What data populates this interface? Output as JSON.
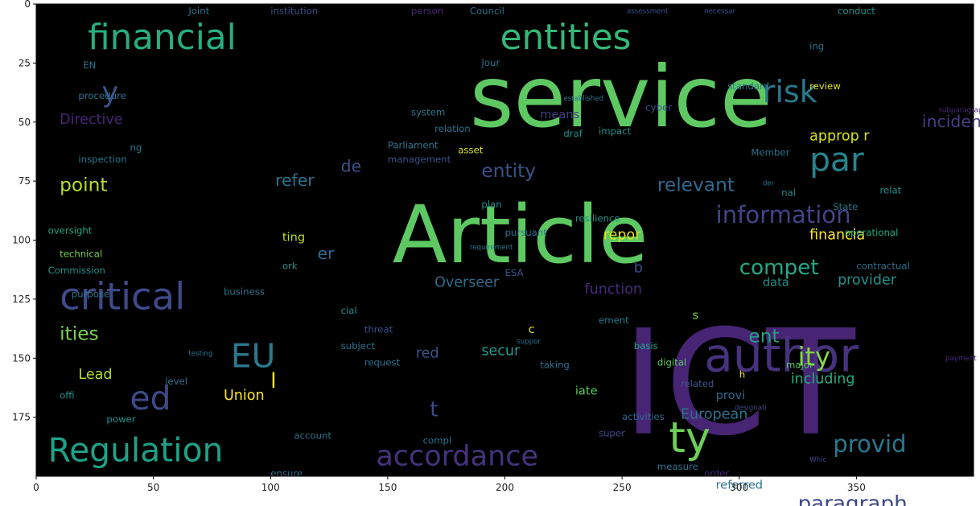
{
  "chart_data": {
    "type": "wordcloud_image",
    "title": "",
    "xlabel": "",
    "ylabel": "",
    "xlim": [
      0,
      400
    ],
    "ylim": [
      200,
      0
    ],
    "x_ticks": [
      0,
      50,
      100,
      150,
      200,
      250,
      300,
      350
    ],
    "y_ticks": [
      0,
      25,
      50,
      75,
      100,
      125,
      150,
      175
    ],
    "background": "#000000",
    "palette": "viridis",
    "words": [
      {
        "text": "service",
        "x": 185,
        "y": 42,
        "size": 36,
        "color": "#5ec962"
      },
      {
        "text": "Article",
        "x": 152,
        "y": 100,
        "size": 34,
        "color": "#5ec962"
      },
      {
        "text": "ICT",
        "x": 250,
        "y": 165,
        "size": 62,
        "color": "#482475"
      },
      {
        "text": "financial",
        "x": 22,
        "y": 15,
        "size": 15,
        "color": "#27ad81"
      },
      {
        "text": "entities",
        "x": 198,
        "y": 15,
        "size": 15,
        "color": "#35b779"
      },
      {
        "text": "risk",
        "x": 310,
        "y": 38,
        "size": 13,
        "color": "#2a788e"
      },
      {
        "text": "par",
        "x": 330,
        "y": 67,
        "size": 14,
        "color": "#25858e"
      },
      {
        "text": "author",
        "x": 285,
        "y": 150,
        "size": 20,
        "color": "#46327e"
      },
      {
        "text": "critical",
        "x": 10,
        "y": 125,
        "size": 16,
        "color": "#3e4a89"
      },
      {
        "text": "Regulation",
        "x": 5,
        "y": 190,
        "size": 14,
        "color": "#1fa187"
      },
      {
        "text": "accordance",
        "x": 145,
        "y": 192,
        "size": 12,
        "color": "#46327e"
      },
      {
        "text": "ed",
        "x": 40,
        "y": 168,
        "size": 14,
        "color": "#3e4a89"
      },
      {
        "text": "EU",
        "x": 83,
        "y": 150,
        "size": 14,
        "color": "#2a788e"
      },
      {
        "text": "ty",
        "x": 270,
        "y": 185,
        "size": 18,
        "color": "#6ece58"
      },
      {
        "text": "ity",
        "x": 325,
        "y": 150,
        "size": 11,
        "color": "#86d549"
      },
      {
        "text": "information",
        "x": 290,
        "y": 90,
        "size": 10,
        "color": "#414487"
      },
      {
        "text": "compet",
        "x": 300,
        "y": 112,
        "size": 9,
        "color": "#22a884"
      },
      {
        "text": "provid",
        "x": 340,
        "y": 187,
        "size": 10,
        "color": "#2a788e"
      },
      {
        "text": "paragraph",
        "x": 325,
        "y": 212,
        "size": 9,
        "color": "#3e4a89"
      },
      {
        "text": "point",
        "x": 10,
        "y": 77,
        "size": 8,
        "color": "#b5de2b"
      },
      {
        "text": "ities",
        "x": 10,
        "y": 140,
        "size": 8,
        "color": "#7ad151"
      },
      {
        "text": "Union",
        "x": 80,
        "y": 166,
        "size": 6,
        "color": "#fde725"
      },
      {
        "text": "Lead",
        "x": 18,
        "y": 157,
        "size": 6,
        "color": "#b5de2b"
      },
      {
        "text": "entity",
        "x": 190,
        "y": 71,
        "size": 8,
        "color": "#3b528b"
      },
      {
        "text": "relevant",
        "x": 265,
        "y": 77,
        "size": 8,
        "color": "#31688e"
      },
      {
        "text": "refer",
        "x": 102,
        "y": 75,
        "size": 7,
        "color": "#2c728e"
      },
      {
        "text": "de",
        "x": 130,
        "y": 69,
        "size": 7,
        "color": "#3b528b"
      },
      {
        "text": "er",
        "x": 120,
        "y": 106,
        "size": 7,
        "color": "#31688e"
      },
      {
        "text": "Overseer",
        "x": 170,
        "y": 118,
        "size": 6,
        "color": "#306a8e"
      },
      {
        "text": "function",
        "x": 234,
        "y": 121,
        "size": 6,
        "color": "#472a7a"
      },
      {
        "text": "provider",
        "x": 342,
        "y": 117,
        "size": 6,
        "color": "#21918c"
      },
      {
        "text": "European",
        "x": 275,
        "y": 174,
        "size": 6,
        "color": "#2c728e"
      },
      {
        "text": "secur",
        "x": 190,
        "y": 147,
        "size": 6,
        "color": "#1e9b8a"
      },
      {
        "text": "ent",
        "x": 304,
        "y": 141,
        "size": 8,
        "color": "#20a386"
      },
      {
        "text": "including",
        "x": 322,
        "y": 159,
        "size": 6,
        "color": "#26ad81"
      },
      {
        "text": "financia",
        "x": 330,
        "y": 98,
        "size": 6,
        "color": "#fde725"
      },
      {
        "text": "repor",
        "x": 242,
        "y": 98,
        "size": 6,
        "color": "#dde318"
      },
      {
        "text": "data",
        "x": 310,
        "y": 118,
        "size": 5,
        "color": "#1f968b"
      },
      {
        "text": "approp r",
        "x": 330,
        "y": 56,
        "size": 6,
        "color": "#d8e219"
      },
      {
        "text": "incident",
        "x": 378,
        "y": 50,
        "size": 7,
        "color": "#433e85"
      },
      {
        "text": "Directive",
        "x": 10,
        "y": 49,
        "size": 6,
        "color": "#482677"
      },
      {
        "text": "referred",
        "x": 290,
        "y": 204,
        "size": 5,
        "color": "#2c728e"
      },
      {
        "text": "provi",
        "x": 290,
        "y": 166,
        "size": 5,
        "color": "#31688e"
      },
      {
        "text": "iate",
        "x": 230,
        "y": 164,
        "size": 5,
        "color": "#5dc863"
      },
      {
        "text": "means",
        "x": 215,
        "y": 47,
        "size": 5,
        "color": "#433e85"
      },
      {
        "text": "ting",
        "x": 105,
        "y": 99,
        "size": 5,
        "color": "#b8de29"
      },
      {
        "text": "red",
        "x": 162,
        "y": 148,
        "size": 6,
        "color": "#3b528b"
      },
      {
        "text": "b",
        "x": 255,
        "y": 112,
        "size": 6,
        "color": "#3e4a89"
      },
      {
        "text": "l",
        "x": 100,
        "y": 160,
        "size": 9,
        "color": "#fde725"
      },
      {
        "text": "t",
        "x": 168,
        "y": 172,
        "size": 9,
        "color": "#3e4a89"
      },
      {
        "text": "y",
        "x": 28,
        "y": 38,
        "size": 12,
        "color": "#3b528b"
      },
      {
        "text": "c",
        "x": 210,
        "y": 138,
        "size": 5,
        "color": "#e5e419"
      },
      {
        "text": "s",
        "x": 280,
        "y": 132,
        "size": 5,
        "color": "#7ad151"
      },
      {
        "text": "h",
        "x": 300,
        "y": 157,
        "size": 4,
        "color": "#fde725"
      },
      {
        "text": "institution",
        "x": 100,
        "y": 3,
        "size": 4,
        "color": "#3b528b"
      },
      {
        "text": "Council",
        "x": 185,
        "y": 3,
        "size": 4,
        "color": "#2c728e"
      },
      {
        "text": "Joint",
        "x": 65,
        "y": 3,
        "size": 4,
        "color": "#2c728e"
      },
      {
        "text": "person",
        "x": 160,
        "y": 3,
        "size": 4,
        "color": "#482878"
      },
      {
        "text": "assessment",
        "x": 252,
        "y": 3,
        "size": 3,
        "color": "#3b528b"
      },
      {
        "text": "necessar",
        "x": 285,
        "y": 3,
        "size": 3,
        "color": "#3b528b"
      },
      {
        "text": "conduct",
        "x": 342,
        "y": 3,
        "size": 4,
        "color": "#21918c"
      },
      {
        "text": "procedure",
        "x": 18,
        "y": 39,
        "size": 4,
        "color": "#2c728e"
      },
      {
        "text": "system",
        "x": 160,
        "y": 46,
        "size": 4,
        "color": "#2a788e"
      },
      {
        "text": "relation",
        "x": 170,
        "y": 53,
        "size": 4,
        "color": "#2c728e"
      },
      {
        "text": "Parliament",
        "x": 150,
        "y": 60,
        "size": 4,
        "color": "#2a788e"
      },
      {
        "text": "management",
        "x": 150,
        "y": 66,
        "size": 4,
        "color": "#3b528b"
      },
      {
        "text": "inspection",
        "x": 18,
        "y": 66,
        "size": 4,
        "color": "#2a788e"
      },
      {
        "text": "oversight",
        "x": 5,
        "y": 96,
        "size": 4,
        "color": "#22a884"
      },
      {
        "text": "technical",
        "x": 10,
        "y": 106,
        "size": 4,
        "color": "#7ad151"
      },
      {
        "text": "Commission",
        "x": 5,
        "y": 113,
        "size": 4,
        "color": "#21918c"
      },
      {
        "text": "purpose",
        "x": 15,
        "y": 123,
        "size": 4,
        "color": "#2c728e"
      },
      {
        "text": "pursuant",
        "x": 200,
        "y": 97,
        "size": 4,
        "color": "#2c728e"
      },
      {
        "text": "resilience",
        "x": 230,
        "y": 91,
        "size": 4,
        "color": "#21918c"
      },
      {
        "text": "operational",
        "x": 345,
        "y": 97,
        "size": 4,
        "color": "#26ad81"
      },
      {
        "text": "contractual",
        "x": 350,
        "y": 111,
        "size": 4,
        "color": "#2c728e"
      },
      {
        "text": "standard",
        "x": 295,
        "y": 35,
        "size": 4,
        "color": "#2a788e"
      },
      {
        "text": "review",
        "x": 330,
        "y": 35,
        "size": 4,
        "color": "#dde318"
      },
      {
        "text": "cyber",
        "x": 260,
        "y": 44,
        "size": 4,
        "color": "#3b528b"
      },
      {
        "text": "impact",
        "x": 240,
        "y": 54,
        "size": 4,
        "color": "#21918c"
      },
      {
        "text": "Member",
        "x": 305,
        "y": 63,
        "size": 4,
        "color": "#2c728e"
      },
      {
        "text": "State",
        "x": 340,
        "y": 86,
        "size": 4,
        "color": "#2c728e"
      },
      {
        "text": "relat",
        "x": 360,
        "y": 79,
        "size": 4,
        "color": "#21918c"
      },
      {
        "text": "asset",
        "x": 180,
        "y": 62,
        "size": 4,
        "color": "#dde318"
      },
      {
        "text": "draf",
        "x": 225,
        "y": 55,
        "size": 4,
        "color": "#21918c"
      },
      {
        "text": "business",
        "x": 80,
        "y": 122,
        "size": 4,
        "color": "#2c728e"
      },
      {
        "text": "testing",
        "x": 65,
        "y": 148,
        "size": 3,
        "color": "#2c728e"
      },
      {
        "text": "threat",
        "x": 140,
        "y": 138,
        "size": 4,
        "color": "#3b528b"
      },
      {
        "text": "subject",
        "x": 130,
        "y": 145,
        "size": 4,
        "color": "#2c728e"
      },
      {
        "text": "request",
        "x": 140,
        "y": 152,
        "size": 4,
        "color": "#2c728e"
      },
      {
        "text": "digital",
        "x": 265,
        "y": 152,
        "size": 4,
        "color": "#5ec962"
      },
      {
        "text": "basis",
        "x": 255,
        "y": 145,
        "size": 4,
        "color": "#22a884"
      },
      {
        "text": "taking",
        "x": 215,
        "y": 153,
        "size": 4,
        "color": "#2c728e"
      },
      {
        "text": "major",
        "x": 320,
        "y": 153,
        "size": 4,
        "color": "#5ec962"
      },
      {
        "text": "related",
        "x": 275,
        "y": 161,
        "size": 4,
        "color": "#3b528b"
      },
      {
        "text": "level",
        "x": 55,
        "y": 160,
        "size": 4,
        "color": "#2c728e"
      },
      {
        "text": "offi",
        "x": 10,
        "y": 166,
        "size": 4,
        "color": "#21918c"
      },
      {
        "text": "power",
        "x": 30,
        "y": 176,
        "size": 4,
        "color": "#21918c"
      },
      {
        "text": "activities",
        "x": 250,
        "y": 175,
        "size": 4,
        "color": "#31688e"
      },
      {
        "text": "super",
        "x": 240,
        "y": 182,
        "size": 4,
        "color": "#3e4a89"
      },
      {
        "text": "measure",
        "x": 265,
        "y": 196,
        "size": 4,
        "color": "#2c728e"
      },
      {
        "text": "account",
        "x": 110,
        "y": 183,
        "size": 4,
        "color": "#2c728e"
      },
      {
        "text": "ensure",
        "x": 100,
        "y": 199,
        "size": 4,
        "color": "#2c728e"
      },
      {
        "text": "plan",
        "x": 190,
        "y": 85,
        "size": 4,
        "color": "#21918c"
      },
      {
        "text": "ESA",
        "x": 200,
        "y": 114,
        "size": 4,
        "color": "#3b528b"
      },
      {
        "text": "order",
        "x": 285,
        "y": 199,
        "size": 4,
        "color": "#482878"
      },
      {
        "text": "ork",
        "x": 105,
        "y": 111,
        "size": 4,
        "color": "#21918c"
      },
      {
        "text": "nal",
        "x": 318,
        "y": 80,
        "size": 4,
        "color": "#21918c"
      },
      {
        "text": "ing",
        "x": 330,
        "y": 18,
        "size": 4,
        "color": "#2c728e"
      },
      {
        "text": "EN",
        "x": 20,
        "y": 26,
        "size": 4,
        "color": "#2c728e"
      },
      {
        "text": "Jour",
        "x": 190,
        "y": 25,
        "size": 4,
        "color": "#2c728e"
      },
      {
        "text": "ng",
        "x": 40,
        "y": 61,
        "size": 4,
        "color": "#2a788e"
      },
      {
        "text": "cial",
        "x": 130,
        "y": 130,
        "size": 4,
        "color": "#21918c"
      },
      {
        "text": "ement",
        "x": 240,
        "y": 134,
        "size": 4,
        "color": "#2a788e"
      },
      {
        "text": "compl",
        "x": 165,
        "y": 185,
        "size": 4,
        "color": "#2c728e"
      },
      {
        "text": "established",
        "x": 225,
        "y": 40,
        "size": 3,
        "color": "#2c728e"
      },
      {
        "text": "suppor",
        "x": 205,
        "y": 143,
        "size": 3,
        "color": "#2c728e"
      },
      {
        "text": "subparagraph",
        "x": 385,
        "y": 45,
        "size": 3,
        "color": "#482878"
      },
      {
        "text": "designati",
        "x": 298,
        "y": 171,
        "size": 3,
        "color": "#3e4a89"
      },
      {
        "text": "requirement",
        "x": 185,
        "y": 103,
        "size": 3,
        "color": "#2a788e"
      },
      {
        "text": "Whic",
        "x": 330,
        "y": 193,
        "size": 3,
        "color": "#3e4a89"
      },
      {
        "text": "der",
        "x": 310,
        "y": 76,
        "size": 3,
        "color": "#2c728e"
      },
      {
        "text": "payment",
        "x": 388,
        "y": 150,
        "size": 3,
        "color": "#482878"
      }
    ]
  }
}
